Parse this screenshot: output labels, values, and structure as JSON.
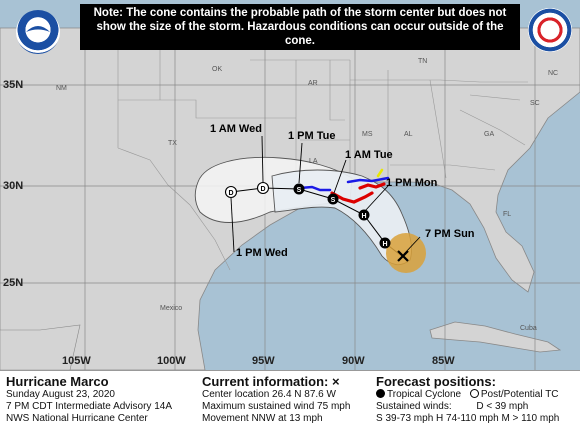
{
  "note": "Note: The cone contains the probable path of the storm center but does not show the size of the storm. Hazardous conditions can occur outside of the cone.",
  "logos": {
    "left": "NOAA",
    "right": "NATIONAL WEATHER SERVICE"
  },
  "latitudes": [
    "35N",
    "30N",
    "25N"
  ],
  "longitudes": [
    "105W",
    "100W",
    "95W",
    "90W",
    "85W"
  ],
  "states": [
    "NM",
    "OK",
    "AR",
    "TN",
    "NC",
    "SC",
    "TX",
    "MS",
    "AL",
    "GA",
    "LA",
    "FL",
    "Mexico",
    "Cuba"
  ],
  "forecast_labels": {
    "t1": "1 AM Wed",
    "t2": "1 PM Tue",
    "t3": "1 AM Tue",
    "t4": "1 PM Mon",
    "t5": "7 PM Sun",
    "t6": "1 PM Wed"
  },
  "forecast_points": [
    {
      "symbol": "D",
      "lat": 30.1,
      "lon": -97.5
    },
    {
      "symbol": "D",
      "lat": 30.4,
      "lon": -95.9
    },
    {
      "symbol": "S",
      "lat": 30.5,
      "lon": -93.7
    },
    {
      "symbol": "S",
      "lat": 29.8,
      "lon": -91.8
    },
    {
      "symbol": "H",
      "lat": 29.3,
      "lon": -90.8
    },
    {
      "symbol": "H",
      "lat": 27.9,
      "lon": -88.8
    },
    {
      "symbol": "X",
      "lat": 26.4,
      "lon": -87.6
    }
  ],
  "colors": {
    "water": "#a8c2d4",
    "land": "#d4d4d4",
    "cone_day45": "#f4f4f4",
    "cone_day13": "#e8edf2",
    "warning_red": "#dc0000",
    "watch_blue": "#1a1ae6",
    "current_wind": "#d9a13a",
    "tropical_storm_watch": "#e8e800"
  },
  "legend": {
    "title": "Hurricane Marco",
    "date": "Sunday August 23, 2020",
    "advisory": "7 PM CDT Intermediate Advisory 14A",
    "center": "NWS National Hurricane Center",
    "current_title": "Current information: ×",
    "location": "Center location 26.4 N 87.6 W",
    "wind": "Maximum sustained wind 75 mph",
    "movement": "Movement NNW at 13 mph",
    "forecast_title": "Forecast positions:",
    "tropical": "Tropical Cyclone",
    "post": "Post/Potential TC",
    "sustained": "Sustained winds:",
    "d_range": "D < 39 mph",
    "scale": "S 39-73 mph  H 74-110 mph  M > 110 mph"
  }
}
